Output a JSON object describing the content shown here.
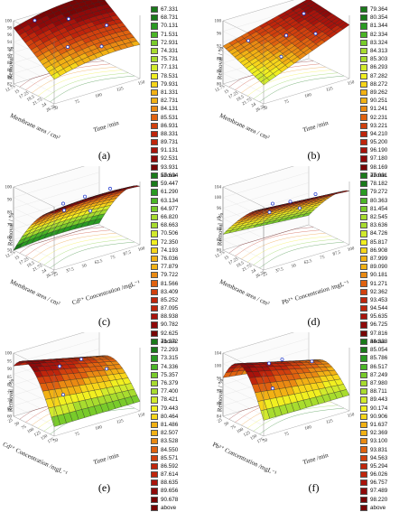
{
  "colors": [
    "#1a7a1a",
    "#2a9a22",
    "#4bb626",
    "#79cb2a",
    "#a8dc2e",
    "#d2ea2c",
    "#f1ef20",
    "#f7d51a",
    "#f2b114",
    "#ea8a12",
    "#e0620f",
    "#d2400d",
    "#c0250b",
    "#a9130b",
    "#8f0909",
    "#780505"
  ],
  "chart_data": [
    {
      "type": "surface",
      "caption": "(a)",
      "zlabel": "Removal / %",
      "xlabel": "Membrane area / cm²",
      "ylabel": "Time /min",
      "xticks": [
        "12.75",
        "15",
        "17.25",
        "19.5",
        "21.75",
        "24",
        "26.25"
      ],
      "yticks": [
        "50",
        "75",
        "100",
        "125",
        "150"
      ],
      "zticks": [
        "82",
        "84",
        "86",
        "88",
        "90",
        "92",
        "94",
        "96",
        "98",
        "100"
      ],
      "zlim": [
        82,
        100
      ],
      "levels": [
        "67.331",
        "68.731",
        "70.131",
        "71.531",
        "72.931",
        "74.331",
        "75.731",
        "77.131",
        "78.531",
        "79.931",
        "81.331",
        "82.731",
        "84.131",
        "85.531",
        "86.931",
        "88.331",
        "89.731",
        "91.131",
        "92.531",
        "93.931",
        "above"
      ]
    },
    {
      "type": "surface",
      "caption": "(b)",
      "zlabel": "Removal / %",
      "xlabel": "Membrane area / cm²",
      "ylabel": "Time /min",
      "xticks": [
        "12.75",
        "15",
        "17.25",
        "19.5",
        "21.75",
        "24",
        "26.25"
      ],
      "yticks": [
        "50",
        "75",
        "100",
        "125",
        "150"
      ],
      "zticks": [
        "80",
        "84",
        "88",
        "92",
        "96",
        "100"
      ],
      "zlim": [
        80,
        100
      ],
      "levels": [
        "79.364",
        "80.354",
        "81.344",
        "82.334",
        "83.324",
        "84.313",
        "85.303",
        "86.293",
        "87.282",
        "88.272",
        "89.262",
        "90.251",
        "91.241",
        "92.231",
        "93.221",
        "94.210",
        "95.200",
        "96.190",
        "97.180",
        "98.169",
        "above"
      ]
    },
    {
      "type": "surface",
      "caption": "(c)",
      "zlabel": "Removal / %",
      "xlabel": "Membrane area / cm²",
      "ylabel": "Cd²⁺ Concentration /mgL⁻¹",
      "xticks": [
        "12.75",
        "15",
        "17.25",
        "19.5",
        "21.75",
        "24",
        "26.25"
      ],
      "yticks": [
        "25",
        "37.5",
        "50",
        "62.5",
        "75",
        "87.5",
        "100"
      ],
      "zticks": [
        "50",
        "60",
        "70",
        "80",
        "90",
        "100"
      ],
      "zlim": [
        50,
        100
      ],
      "levels": [
        "57.604",
        "59.447",
        "61.290",
        "63.134",
        "64.977",
        "66.820",
        "68.663",
        "70.506",
        "72.350",
        "74.193",
        "76.036",
        "77.879",
        "79.722",
        "81.566",
        "83.409",
        "85.252",
        "87.095",
        "88.938",
        "90.782",
        "92.625",
        "above"
      ]
    },
    {
      "type": "surface",
      "caption": "(d)",
      "zlabel": "Removal / %",
      "xlabel": "Membrane area / cm²",
      "ylabel": "Pb²⁺ Concentration /mgL⁻¹",
      "xticks": [
        "12.75",
        "15",
        "17.25",
        "19.5",
        "21.75",
        "24",
        "26.25"
      ],
      "yticks": [
        "25",
        "37.5",
        "50",
        "62.5",
        "75",
        "87.5",
        "100"
      ],
      "zticks": [
        "80",
        "84",
        "88",
        "92",
        "96",
        "100",
        "104"
      ],
      "zlim": [
        80,
        104
      ],
      "levels": [
        "77.091",
        "78.182",
        "79.272",
        "80.363",
        "81.454",
        "82.545",
        "83.636",
        "84.726",
        "85.817",
        "86.908",
        "87.999",
        "89.090",
        "90.181",
        "91.271",
        "92.362",
        "93.453",
        "94.544",
        "95.635",
        "96.725",
        "97.816",
        "above"
      ]
    },
    {
      "type": "surface",
      "caption": "(e)",
      "zlabel": "Removal / %",
      "xlabel": "Cd²⁺ Concentration /mgL⁻¹",
      "ylabel": "Time /min",
      "xticks": [
        "25",
        "50",
        "75",
        "100",
        "125",
        "150",
        "175"
      ],
      "yticks": [
        "50",
        "75",
        "100",
        "125",
        "150"
      ],
      "zticks": [
        "60",
        "65",
        "70",
        "75",
        "80",
        "85",
        "90",
        "95",
        "100"
      ],
      "zlim": [
        60,
        100
      ],
      "levels": [
        "71.272",
        "72.293",
        "73.315",
        "74.336",
        "75.357",
        "76.379",
        "77.400",
        "78.421",
        "79.443",
        "80.464",
        "81.486",
        "82.507",
        "83.528",
        "84.550",
        "85.571",
        "86.592",
        "87.614",
        "88.635",
        "89.656",
        "90.678",
        "above"
      ]
    },
    {
      "type": "surface",
      "caption": "(f)",
      "zlabel": "Removal / %",
      "xlabel": "Pb²⁺ Concentration /mgL⁻¹",
      "ylabel": "Time /min",
      "xticks": [
        "25",
        "50",
        "75",
        "100",
        "125",
        "150",
        "175"
      ],
      "yticks": [
        "50",
        "75",
        "100",
        "125",
        "150"
      ],
      "zticks": [
        "84",
        "88",
        "92",
        "96",
        "100",
        "104"
      ],
      "zlim": [
        84,
        104
      ],
      "levels": [
        "84.323",
        "85.054",
        "85.786",
        "86.517",
        "87.249",
        "87.980",
        "88.711",
        "89.443",
        "90.174",
        "90.906",
        "91.637",
        "92.369",
        "93.100",
        "93.831",
        "94.563",
        "95.294",
        "96.026",
        "96.757",
        "97.489",
        "98.220",
        "above"
      ]
    }
  ]
}
